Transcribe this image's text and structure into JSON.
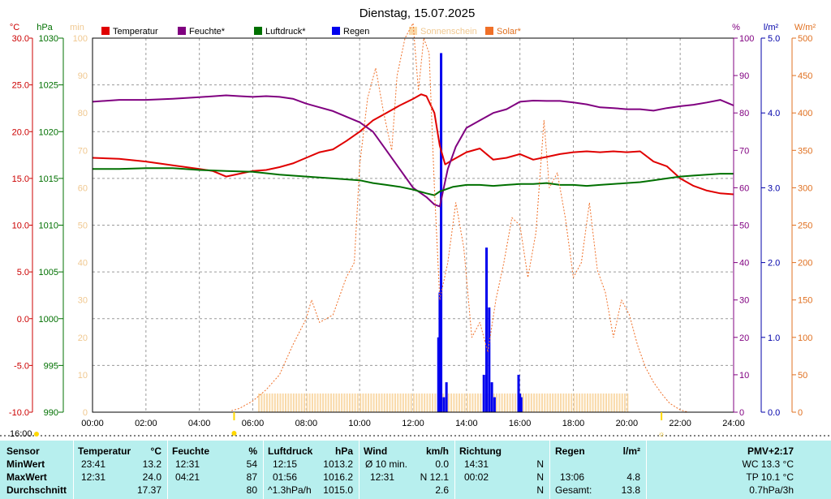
{
  "header": {
    "title": "Dienstag, 15.07.2025"
  },
  "axis_units": {
    "temp": "°C",
    "hpa": "hPa",
    "min": "min",
    "pct": "%",
    "rain": "l/m²",
    "solar": "W/m²"
  },
  "legend": [
    {
      "label": "Temperatur",
      "color": "#e00000"
    },
    {
      "label": "Feuchte*",
      "color": "#800080"
    },
    {
      "label": "Luftdruck*",
      "color": "#007000"
    },
    {
      "label": "Regen",
      "color": "#0000ee"
    },
    {
      "label": "Sonnenschein",
      "color": "#f9d9a8"
    },
    {
      "label": "Solar*",
      "color": "#f07028"
    }
  ],
  "sun_markers": {
    "start_label": "16:00",
    "sunrise": 5.3,
    "sunset": 21.3,
    "sunset_label": "☼"
  },
  "chart_data": {
    "type": "line",
    "x_label_ticks": [
      "00:00",
      "02:00",
      "04:00",
      "06:00",
      "08:00",
      "10:00",
      "12:00",
      "14:00",
      "16:00",
      "18:00",
      "20:00",
      "22:00",
      "24:00"
    ],
    "xlim": [
      0,
      24
    ],
    "grid": true,
    "axes": {
      "temp": {
        "ticks": [
          "30.0",
          "25.0",
          "20.0",
          "15.0",
          "10.0",
          "5.0",
          "0.0",
          "-5.0",
          "-10.0"
        ],
        "range": [
          -10,
          30
        ]
      },
      "hpa": {
        "ticks": [
          "1030",
          "1025",
          "1020",
          "1015",
          "1010",
          "1005",
          "1000",
          "995",
          "990"
        ],
        "range": [
          990,
          1030
        ]
      },
      "min": {
        "ticks": [
          "100",
          "90",
          "80",
          "70",
          "60",
          "50",
          "40",
          "30",
          "20",
          "10",
          "0"
        ],
        "range": [
          0,
          100
        ]
      },
      "pct": {
        "ticks": [
          "100",
          "90",
          "80",
          "70",
          "60",
          "50",
          "40",
          "30",
          "20",
          "10",
          "0"
        ],
        "range": [
          0,
          100
        ]
      },
      "rain": {
        "ticks": [
          "5.0",
          "4.0",
          "3.0",
          "2.0",
          "1.0",
          "0.0"
        ],
        "range": [
          0,
          5
        ]
      },
      "solar": {
        "ticks": [
          "500",
          "450",
          "400",
          "350",
          "300",
          "250",
          "200",
          "150",
          "100",
          "50",
          "0"
        ],
        "range": [
          0,
          500
        ]
      }
    },
    "series": [
      {
        "name": "Temperatur",
        "axis": "temp",
        "color": "#e00000",
        "x": [
          0,
          1,
          2,
          3,
          4,
          4.5,
          5,
          6,
          6.5,
          7,
          7.5,
          8,
          8.5,
          9,
          9.5,
          10,
          10.5,
          11,
          11.5,
          12,
          12.3,
          12.5,
          12.8,
          13,
          13.2,
          13.5,
          14,
          14.5,
          15,
          15.5,
          16,
          16.5,
          17,
          17.5,
          18,
          18.5,
          19,
          19.5,
          20,
          20.5,
          21,
          21.5,
          22,
          22.5,
          23,
          23.5,
          24
        ],
        "y": [
          17.2,
          17.1,
          16.8,
          16.4,
          16.0,
          15.8,
          15.2,
          15.8,
          15.9,
          16.2,
          16.6,
          17.2,
          17.8,
          18.1,
          19.0,
          20.0,
          21.2,
          22.0,
          22.8,
          23.5,
          24.0,
          23.8,
          22.0,
          18.5,
          16.5,
          17.0,
          17.8,
          18.2,
          17.0,
          17.2,
          17.6,
          17.0,
          17.3,
          17.6,
          17.8,
          17.9,
          17.8,
          17.9,
          17.8,
          17.9,
          16.8,
          16.3,
          15.0,
          14.2,
          13.7,
          13.4,
          13.3
        ]
      },
      {
        "name": "Feuchte*",
        "axis": "pct",
        "color": "#800080",
        "x": [
          0,
          1,
          2,
          3,
          4,
          5,
          5.5,
          6,
          6.5,
          7,
          7.5,
          8,
          8.5,
          9,
          9.5,
          10,
          10.5,
          11,
          11.5,
          12,
          12.5,
          12.8,
          13,
          13.3,
          13.6,
          14,
          14.5,
          15,
          15.5,
          16,
          16.5,
          17,
          17.5,
          18,
          18.5,
          19,
          19.5,
          20,
          20.5,
          21,
          21.5,
          22,
          22.5,
          23,
          23.5,
          24
        ],
        "y": [
          83,
          83.5,
          83.5,
          83.8,
          84.2,
          84.7,
          84.5,
          84.3,
          84.5,
          84.3,
          83.8,
          82.5,
          81.5,
          80.5,
          79.0,
          77.5,
          75.0,
          70.0,
          65.0,
          60.0,
          57.5,
          55.5,
          55.0,
          65.0,
          71.0,
          76.0,
          78.0,
          80.0,
          81.0,
          83.0,
          83.3,
          83.2,
          83.2,
          82.8,
          82.3,
          81.5,
          81.3,
          81.0,
          81.0,
          80.6,
          81.3,
          81.8,
          82.2,
          82.8,
          83.5,
          82.0
        ]
      },
      {
        "name": "Luftdruck*",
        "axis": "hpa",
        "color": "#007000",
        "x": [
          0,
          1,
          2,
          3,
          4,
          5,
          6,
          7,
          8,
          9,
          10,
          10.5,
          11,
          11.5,
          12,
          12.5,
          12.8,
          13,
          13.5,
          14,
          14.5,
          15,
          15.5,
          16,
          16.5,
          17,
          17.5,
          18,
          18.5,
          19,
          19.5,
          20,
          20.5,
          21,
          21.5,
          22,
          22.5,
          23,
          23.5,
          24
        ],
        "y": [
          1016.0,
          1016.0,
          1016.1,
          1016.1,
          1015.9,
          1015.8,
          1015.7,
          1015.4,
          1015.2,
          1015.0,
          1014.8,
          1014.5,
          1014.3,
          1014.1,
          1013.8,
          1013.4,
          1013.2,
          1013.6,
          1014.1,
          1014.3,
          1014.3,
          1014.2,
          1014.3,
          1014.4,
          1014.4,
          1014.5,
          1014.3,
          1014.3,
          1014.2,
          1014.3,
          1014.4,
          1014.5,
          1014.6,
          1014.8,
          1015.0,
          1015.2,
          1015.3,
          1015.4,
          1015.5,
          1015.5
        ]
      },
      {
        "name": "Solar*",
        "axis": "solar",
        "color": "#f07028",
        "x": [
          5.2,
          5.5,
          6,
          6.5,
          7,
          7.5,
          8,
          8.2,
          8.5,
          9,
          9.5,
          9.8,
          10,
          10.3,
          10.6,
          10.9,
          11.2,
          11.4,
          11.7,
          12,
          12.2,
          12.4,
          12.6,
          12.8,
          13,
          13.3,
          13.6,
          13.9,
          14.2,
          14.5,
          14.8,
          15.1,
          15.4,
          15.7,
          16,
          16.3,
          16.6,
          16.9,
          17.1,
          17.4,
          17.7,
          18,
          18.3,
          18.6,
          18.9,
          19.2,
          19.5,
          19.8,
          20.1,
          20.4,
          20.7,
          21,
          21.3,
          21.6,
          22,
          22.3
        ],
        "y": [
          2,
          5,
          15,
          30,
          50,
          90,
          125,
          150,
          120,
          130,
          180,
          200,
          330,
          420,
          460,
          400,
          350,
          450,
          500,
          520,
          430,
          500,
          480,
          300,
          150,
          200,
          280,
          220,
          100,
          120,
          80,
          150,
          200,
          260,
          250,
          180,
          240,
          390,
          300,
          320,
          260,
          180,
          200,
          280,
          190,
          160,
          100,
          150,
          130,
          90,
          60,
          40,
          25,
          12,
          3,
          0
        ]
      }
    ],
    "rain": {
      "name": "Regen",
      "axis": "rain",
      "color": "#0000ee",
      "x": [
        12.95,
        13.0,
        13.05,
        13.15,
        13.25,
        14.65,
        14.75,
        14.85,
        14.95,
        15.05,
        15.95,
        16.0,
        16.05
      ],
      "y": [
        1.0,
        1.6,
        4.8,
        0.2,
        0.4,
        0.5,
        2.2,
        1.4,
        0.4,
        0.2,
        0.5,
        0.25,
        0.2
      ]
    },
    "sunshine": {
      "name": "Sonnenschein",
      "axis": "min",
      "color": "#f9d9a8",
      "from": 6.2,
      "to": 20.0,
      "step": 0.1,
      "value": 5
    }
  },
  "stats": {
    "header": {
      "sensor": "Sensor",
      "temp": "Temperatur",
      "temp_unit": "°C",
      "feuchte": "Feuchte",
      "feuchte_unit": "%",
      "luft": "Luftdruck",
      "luft_unit": "hPa",
      "wind": "Wind",
      "wind_unit": "km/h",
      "richtung": "Richtung",
      "regen": "Regen",
      "regen_unit": "l/m²",
      "pmv": "PMV+2:17"
    },
    "rows": [
      {
        "label": "MinWert",
        "t_time": "23:41",
        "t_val": "13.2",
        "f_time": "12:31",
        "f_val": "54",
        "p_time": "12:15",
        "p_val": "1013.2",
        "w_time": "Ø 10 min.",
        "w_val": "0.0",
        "r_time": "14:31",
        "r_dir": "N",
        "g_time": "",
        "g_val": "",
        "extra": "WC 13.3 °C"
      },
      {
        "label": "MaxWert",
        "t_time": "12:31",
        "t_val": "24.0",
        "f_time": "04:21",
        "f_val": "87",
        "p_time": "01:56",
        "p_val": "1016.2",
        "w_time": "12:31",
        "w_val": "N 12.1",
        "r_time": "00:02",
        "r_dir": "N",
        "g_time": "13:06",
        "g_val": "4.8",
        "extra": "TP 10.1 °C"
      },
      {
        "label": "Durchschnitt",
        "t_time": "",
        "t_val": "17.37",
        "f_time": "",
        "f_val": "80",
        "p_time": "^1.3hPa/h",
        "p_val": "1015.0",
        "w_time": "",
        "w_val": "2.6",
        "r_time": "",
        "r_dir": "N",
        "g_time": "Gesamt:",
        "g_val": "13.8",
        "extra": "0.7hPa/3h"
      }
    ]
  }
}
